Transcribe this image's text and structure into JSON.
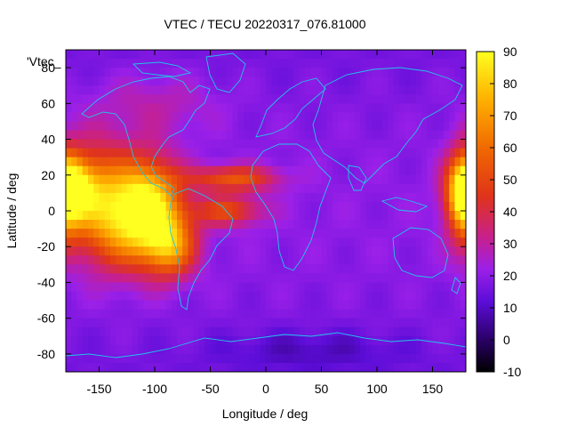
{
  "chart_data": {
    "type": "heatmap",
    "title": "VTEC / TECU 20220317_076.81000",
    "xlabel": "Longitude / deg",
    "ylabel": "Latitude / deg",
    "legend_label": "'Vtec_",
    "xlim": [
      -180,
      180
    ],
    "ylim": [
      -90,
      90
    ],
    "xticks": [
      -150,
      -100,
      -50,
      0,
      50,
      100,
      150
    ],
    "yticks": [
      -80,
      -60,
      -40,
      -20,
      0,
      20,
      40,
      60,
      80
    ],
    "colorbar": {
      "range": [
        -10,
        90
      ],
      "ticks": [
        -10,
        0,
        10,
        20,
        30,
        40,
        50,
        60,
        70,
        80,
        90
      ]
    },
    "background_vtec": 16,
    "features": [
      {
        "lon": -175,
        "lat": 12,
        "sigma_lon": 14,
        "sigma_lat": 12,
        "value": 52
      },
      {
        "lon": -150,
        "lat": 10,
        "sigma_lon": 22,
        "sigma_lat": 20,
        "value": 38
      },
      {
        "lon": -105,
        "lat": 3,
        "sigma_lon": 20,
        "sigma_lat": 18,
        "value": 62
      },
      {
        "lon": -85,
        "lat": -20,
        "sigma_lon": 16,
        "sigma_lat": 12,
        "value": 42
      },
      {
        "lon": -130,
        "lat": -10,
        "sigma_lon": 26,
        "sigma_lat": 18,
        "value": 30
      },
      {
        "lon": -30,
        "lat": 18,
        "sigma_lon": 28,
        "sigma_lat": 5,
        "value": 34
      },
      {
        "lon": -35,
        "lat": 0,
        "sigma_lon": 22,
        "sigma_lat": 6,
        "value": 30
      },
      {
        "lon": 178,
        "lat": 8,
        "sigma_lon": 10,
        "sigma_lat": 18,
        "value": 42
      },
      {
        "lon": -100,
        "lat": 60,
        "sigma_lon": 40,
        "sigma_lat": 12,
        "value": 10
      },
      {
        "lon": 40,
        "lat": -78,
        "sigma_lon": 60,
        "sigma_lat": 8,
        "value": -8
      }
    ],
    "colors": [
      "#000000",
      "#3b0090",
      "#8a1cff",
      "#c81fb0",
      "#e8410e",
      "#ff9900",
      "#ffe000",
      "#ffff30"
    ]
  }
}
